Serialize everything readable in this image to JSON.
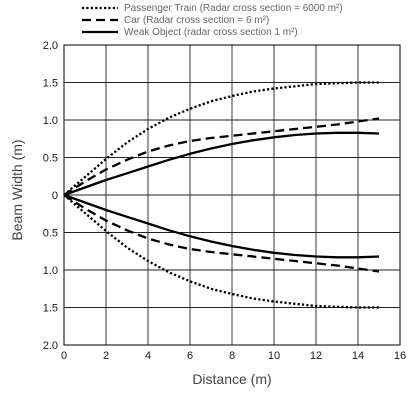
{
  "chart_data": {
    "type": "line",
    "xlabel": "Distance (m)",
    "ylabel": "Beam Width (m)",
    "xlim": [
      0,
      16
    ],
    "ylim": [
      -2.0,
      2.0
    ],
    "x_ticks": [
      0,
      2,
      4,
      6,
      8,
      10,
      12,
      14,
      16
    ],
    "x_tick_labels": [
      "0",
      "2",
      "4",
      "6",
      "8",
      "10",
      "12",
      "14",
      "16"
    ],
    "y_ticks": [
      2.0,
      1.5,
      1.0,
      0.5,
      0,
      -0.5,
      -1.0,
      -1.5,
      -2.0
    ],
    "y_tick_labels": [
      "2.0",
      "1.5",
      "1.0",
      "0.5",
      "0",
      "0.5",
      "1.0",
      "1.5",
      "2.0"
    ],
    "grid": true,
    "legend_position": "top",
    "series": [
      {
        "name": "Passenger Train (Radar cross section = 6000 m²)",
        "dash": "dotted",
        "color": "#000000",
        "x": [
          0,
          1,
          2,
          3,
          4,
          5,
          6,
          7,
          8,
          9,
          10,
          11,
          12,
          13,
          14,
          15
        ],
        "upper": [
          0,
          0.24,
          0.48,
          0.7,
          0.88,
          1.03,
          1.15,
          1.25,
          1.32,
          1.38,
          1.42,
          1.45,
          1.48,
          1.49,
          1.5,
          1.5
        ],
        "lower": [
          0,
          -0.24,
          -0.48,
          -0.7,
          -0.88,
          -1.03,
          -1.15,
          -1.25,
          -1.32,
          -1.38,
          -1.42,
          -1.45,
          -1.48,
          -1.49,
          -1.5,
          -1.5
        ]
      },
      {
        "name": "Car (Radar cross section = 6 m²)",
        "dash": "dashed",
        "color": "#000000",
        "x": [
          0,
          1,
          2,
          3,
          4,
          5,
          6,
          7,
          8,
          9,
          10,
          11,
          12,
          13,
          14,
          15
        ],
        "upper": [
          0,
          0.18,
          0.34,
          0.47,
          0.58,
          0.66,
          0.72,
          0.76,
          0.79,
          0.82,
          0.85,
          0.88,
          0.91,
          0.94,
          0.98,
          1.02
        ],
        "lower": [
          0,
          -0.18,
          -0.34,
          -0.47,
          -0.58,
          -0.66,
          -0.72,
          -0.76,
          -0.79,
          -0.82,
          -0.85,
          -0.88,
          -0.91,
          -0.94,
          -0.98,
          -1.02
        ]
      },
      {
        "name": "Weak Object (radar cross section 1 m²)",
        "dash": "solid",
        "color": "#000000",
        "x": [
          0,
          1,
          2,
          3,
          4,
          5,
          6,
          7,
          8,
          9,
          10,
          11,
          12,
          13,
          14,
          15
        ],
        "upper": [
          0,
          0.1,
          0.2,
          0.29,
          0.38,
          0.47,
          0.55,
          0.62,
          0.68,
          0.73,
          0.77,
          0.8,
          0.82,
          0.83,
          0.83,
          0.82
        ],
        "lower": [
          0,
          -0.1,
          -0.2,
          -0.29,
          -0.38,
          -0.47,
          -0.55,
          -0.62,
          -0.68,
          -0.73,
          -0.77,
          -0.8,
          -0.82,
          -0.83,
          -0.83,
          -0.82
        ]
      }
    ]
  }
}
